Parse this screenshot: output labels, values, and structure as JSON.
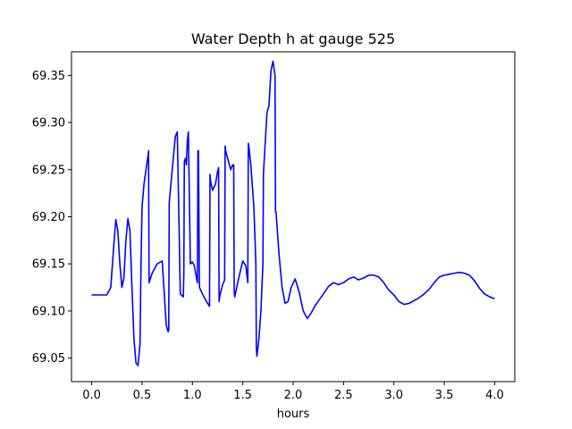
{
  "chart_data": {
    "type": "line",
    "title": "Water Depth h at gauge 525",
    "xlabel": "hours",
    "ylabel": "",
    "xlim": [
      -0.2,
      4.2
    ],
    "ylim": [
      69.025,
      69.375
    ],
    "xticks": [
      0.0,
      0.5,
      1.0,
      1.5,
      2.0,
      2.5,
      3.0,
      3.5,
      4.0
    ],
    "xtick_labels": [
      "0.0",
      "0.5",
      "1.0",
      "1.5",
      "2.0",
      "2.5",
      "3.0",
      "3.5",
      "4.0"
    ],
    "yticks": [
      69.05,
      69.1,
      69.15,
      69.2,
      69.25,
      69.3,
      69.35
    ],
    "ytick_labels": [
      "69.05",
      "69.10",
      "69.15",
      "69.20",
      "69.25",
      "69.30",
      "69.35"
    ],
    "grid": false,
    "series": [
      {
        "color": "#0000ff",
        "x": [
          0.0,
          0.05,
          0.1,
          0.15,
          0.19,
          0.22,
          0.24,
          0.26,
          0.28,
          0.3,
          0.32,
          0.34,
          0.36,
          0.38,
          0.4,
          0.42,
          0.44,
          0.46,
          0.48,
          0.49,
          0.5,
          0.52,
          0.54,
          0.56,
          0.565,
          0.57,
          0.6,
          0.65,
          0.7,
          0.72,
          0.74,
          0.76,
          0.765,
          0.77,
          0.8,
          0.83,
          0.85,
          0.88,
          0.91,
          0.915,
          0.92,
          0.93,
          0.94,
          0.95,
          0.955,
          0.96,
          0.98,
          1.0,
          1.02,
          1.04,
          1.05,
          1.055,
          1.06,
          1.07,
          1.1,
          1.14,
          1.17,
          1.175,
          1.18,
          1.2,
          1.23,
          1.25,
          1.26,
          1.265,
          1.27,
          1.3,
          1.32,
          1.325,
          1.33,
          1.36,
          1.38,
          1.4,
          1.41,
          1.415,
          1.42,
          1.46,
          1.5,
          1.53,
          1.55,
          1.555,
          1.56,
          1.58,
          1.61,
          1.63,
          1.635,
          1.64,
          1.66,
          1.68,
          1.7,
          1.705,
          1.71,
          1.74,
          1.76,
          1.78,
          1.8,
          1.82,
          1.825,
          1.83,
          1.86,
          1.89,
          1.92,
          1.95,
          1.98,
          2.02,
          2.06,
          2.1,
          2.14,
          2.18,
          2.22,
          2.26,
          2.3,
          2.35,
          2.4,
          2.45,
          2.5,
          2.55,
          2.6,
          2.65,
          2.7,
          2.75,
          2.8,
          2.85,
          2.9,
          2.95,
          3.0,
          3.05,
          3.1,
          3.15,
          3.2,
          3.25,
          3.3,
          3.35,
          3.4,
          3.45,
          3.5,
          3.55,
          3.6,
          3.65,
          3.7,
          3.75,
          3.8,
          3.85,
          3.9,
          3.95,
          4.0
        ],
        "y": [
          69.117,
          69.117,
          69.117,
          69.117,
          69.125,
          69.17,
          69.197,
          69.185,
          69.15,
          69.125,
          69.135,
          69.175,
          69.198,
          69.185,
          69.125,
          69.07,
          69.045,
          69.042,
          69.065,
          69.15,
          69.21,
          69.235,
          69.25,
          69.265,
          69.27,
          69.13,
          69.14,
          69.15,
          69.153,
          69.12,
          69.085,
          69.078,
          69.08,
          69.215,
          69.25,
          69.285,
          69.29,
          69.118,
          69.115,
          69.14,
          69.258,
          69.262,
          69.255,
          69.28,
          69.285,
          69.29,
          69.15,
          69.152,
          69.148,
          69.135,
          69.13,
          69.27,
          69.27,
          69.125,
          69.118,
          69.11,
          69.105,
          69.245,
          69.238,
          69.228,
          69.235,
          69.248,
          69.252,
          69.11,
          69.115,
          69.128,
          69.133,
          69.275,
          69.27,
          69.258,
          69.25,
          69.255,
          69.255,
          69.12,
          69.115,
          69.135,
          69.153,
          69.148,
          69.13,
          69.278,
          69.275,
          69.255,
          69.21,
          69.15,
          69.06,
          69.052,
          69.07,
          69.1,
          69.15,
          69.245,
          69.255,
          69.31,
          69.318,
          69.355,
          69.365,
          69.35,
          69.205,
          69.205,
          69.16,
          69.125,
          69.108,
          69.11,
          69.125,
          69.134,
          69.12,
          69.1,
          69.092,
          69.098,
          69.106,
          69.112,
          69.118,
          69.126,
          69.13,
          69.128,
          69.13,
          69.134,
          69.136,
          69.133,
          69.135,
          69.138,
          69.138,
          69.136,
          69.13,
          69.122,
          69.117,
          69.11,
          69.107,
          69.108,
          69.111,
          69.114,
          69.118,
          69.123,
          69.13,
          69.136,
          69.138,
          69.139,
          69.14,
          69.141,
          69.14,
          69.138,
          69.132,
          69.124,
          69.118,
          69.115,
          69.113
        ]
      }
    ]
  }
}
